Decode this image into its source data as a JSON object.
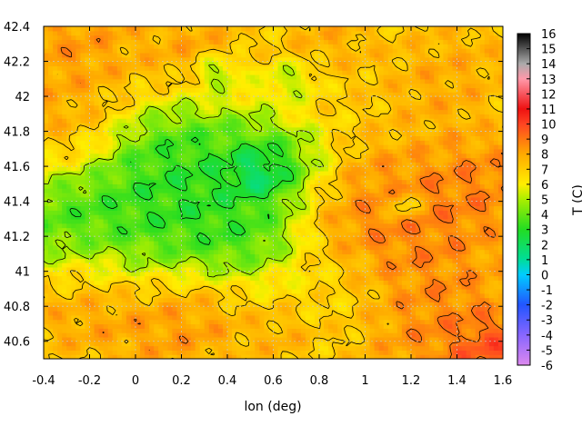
{
  "chart_data": {
    "type": "heatmap",
    "title": "",
    "xlabel": "lon (deg)",
    "ylabel": "",
    "colorbar_label": "T (C)",
    "xlim": [
      -0.4,
      1.6
    ],
    "ylim": [
      40.5,
      42.4
    ],
    "x_ticks": [
      "-0.4",
      "-0.2",
      "0",
      "0.2",
      "0.4",
      "0.6",
      "0.8",
      "1",
      "1.2",
      "1.4",
      "1.6"
    ],
    "y_ticks": [
      "40.6",
      "40.8",
      "41",
      "41.2",
      "41.4",
      "41.6",
      "41.8",
      "42",
      "42.2",
      "42.4"
    ],
    "x_tick_values": [
      -0.4,
      -0.2,
      0,
      0.2,
      0.4,
      0.6,
      0.8,
      1,
      1.2,
      1.4,
      1.6
    ],
    "y_tick_values": [
      40.6,
      40.8,
      41.0,
      41.2,
      41.4,
      41.6,
      41.8,
      42.0,
      42.2,
      42.4
    ],
    "colorbar_range": [
      -6,
      16
    ],
    "colorbar_ticks": [
      "16",
      "15",
      "14",
      "13",
      "12",
      "11",
      "10",
      "9",
      "8",
      "7",
      "6",
      "5",
      "4",
      "3",
      "2",
      "1",
      "0",
      "-1",
      "-2",
      "-3",
      "-4",
      "-5",
      "-6"
    ],
    "colorbar_stops": [
      {
        "v": -6,
        "color": "#dd88ee"
      },
      {
        "v": -4,
        "color": "#8866ff"
      },
      {
        "v": -2,
        "color": "#2255ff"
      },
      {
        "v": 0,
        "color": "#00ccff"
      },
      {
        "v": 1,
        "color": "#00dd99"
      },
      {
        "v": 3,
        "color": "#22dd22"
      },
      {
        "v": 5,
        "color": "#aaee00"
      },
      {
        "v": 6,
        "color": "#ffee00"
      },
      {
        "v": 8,
        "color": "#ffaa00"
      },
      {
        "v": 10,
        "color": "#ff4422"
      },
      {
        "v": 11,
        "color": "#ee1111"
      },
      {
        "v": 13,
        "color": "#ff99aa"
      },
      {
        "v": 14,
        "color": "#aaaaaa"
      },
      {
        "v": 16,
        "color": "#000000"
      }
    ],
    "grid": true,
    "grid_color": "#c8c8c8",
    "contour_color": "#000000",
    "features": [
      {
        "lon": 0.55,
        "lat": 41.55,
        "temp": -1.0,
        "r": 0.12
      },
      {
        "lon": 0.3,
        "lat": 41.45,
        "temp": 2.0,
        "r": 0.35
      },
      {
        "lon": -0.3,
        "lat": 41.35,
        "temp": 2.5,
        "r": 0.35
      },
      {
        "lon": 0.0,
        "lat": 41.25,
        "temp": 3.0,
        "r": 0.3
      },
      {
        "lon": 0.15,
        "lat": 41.6,
        "temp": 3.0,
        "r": 0.22
      },
      {
        "lon": 0.5,
        "lat": 41.25,
        "temp": 3.0,
        "r": 0.2
      },
      {
        "lon": 0.65,
        "lat": 41.6,
        "temp": 2.0,
        "r": 0.2
      },
      {
        "lon": 0.35,
        "lat": 42.15,
        "temp": 3.0,
        "r": 0.08
      },
      {
        "lon": 0.7,
        "lat": 42.1,
        "temp": 3.5,
        "r": 0.1
      },
      {
        "lon": 1.17,
        "lat": 41.38,
        "temp": 2.5,
        "r": 0.06
      },
      {
        "lon": 0.95,
        "lat": 41.45,
        "temp": 9.0,
        "r": 0.3
      },
      {
        "lon": 1.2,
        "lat": 41.25,
        "temp": 9.5,
        "r": 0.3
      },
      {
        "lon": 1.5,
        "lat": 41.5,
        "temp": 9.5,
        "r": 0.25
      },
      {
        "lon": 1.35,
        "lat": 40.7,
        "temp": 9.5,
        "r": 0.35
      },
      {
        "lon": 1.55,
        "lat": 40.55,
        "temp": 11.0,
        "r": 0.15
      },
      {
        "lon": -0.35,
        "lat": 41.75,
        "temp": 9.0,
        "r": 0.25
      },
      {
        "lon": -0.3,
        "lat": 42.3,
        "temp": 9.0,
        "r": 0.3
      },
      {
        "lon": -0.2,
        "lat": 40.85,
        "temp": 9.0,
        "r": 0.3
      },
      {
        "lon": 0.2,
        "lat": 40.7,
        "temp": 9.0,
        "r": 0.25
      },
      {
        "lon": 0.8,
        "lat": 40.85,
        "temp": 6.5,
        "r": 0.25
      },
      {
        "lon": 0.65,
        "lat": 40.65,
        "temp": 8.5,
        "r": 0.15
      },
      {
        "lon": 0.25,
        "lat": 42.3,
        "temp": 8.5,
        "r": 0.2
      },
      {
        "lon": 0.85,
        "lat": 42.3,
        "temp": 8.5,
        "r": 0.2
      },
      {
        "lon": 0.9,
        "lat": 42.05,
        "temp": 7.0,
        "r": 0.25
      },
      {
        "lon": 1.3,
        "lat": 42.05,
        "temp": 8.5,
        "r": 0.25
      },
      {
        "lon": 1.45,
        "lat": 42.25,
        "temp": 8.0,
        "r": 0.2
      }
    ],
    "background_temp": 6.3
  }
}
